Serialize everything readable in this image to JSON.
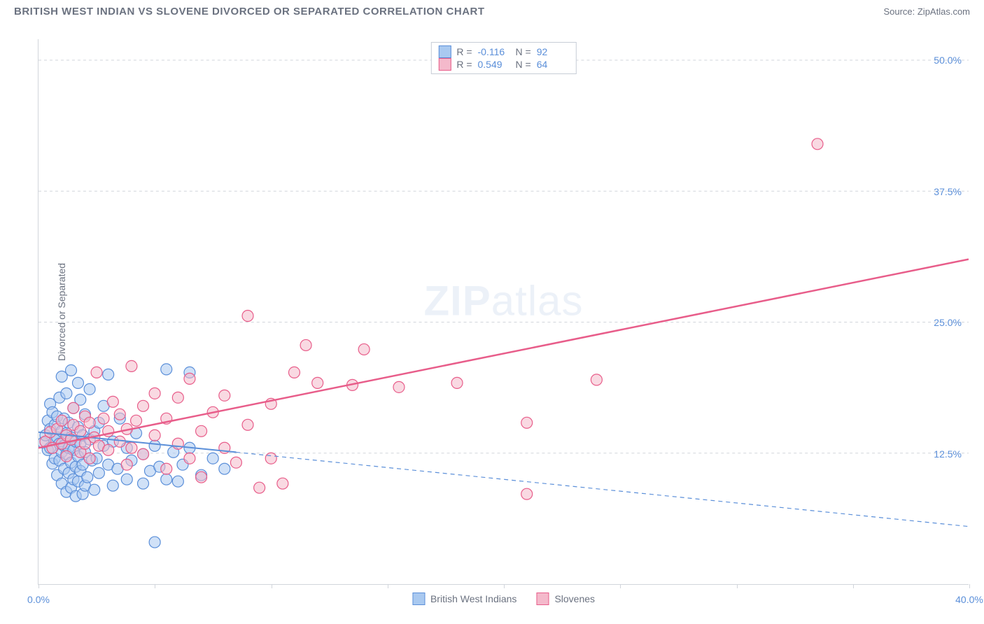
{
  "title": "BRITISH WEST INDIAN VS SLOVENE DIVORCED OR SEPARATED CORRELATION CHART",
  "source": "Source: ZipAtlas.com",
  "watermark_bold": "ZIP",
  "watermark_light": "atlas",
  "ylabel": "Divorced or Separated",
  "chart": {
    "type": "scatter",
    "xlim": [
      0,
      40
    ],
    "ylim": [
      0,
      52
    ],
    "xticks": [
      0,
      5,
      10,
      15,
      20,
      25,
      30,
      35,
      40
    ],
    "xtick_labels": {
      "0": "0.0%",
      "40": "40.0%"
    },
    "yticks": [
      12.5,
      25.0,
      37.5,
      50.0
    ],
    "ytick_labels": [
      "12.5%",
      "25.0%",
      "37.5%",
      "50.0%"
    ],
    "background_color": "#ffffff",
    "grid_color": "#d1d5db",
    "axis_color": "#d1d5db",
    "text_color": "#6b7280",
    "value_color": "#5b8fd9",
    "marker_radius": 8,
    "marker_opacity": 0.55,
    "series": [
      {
        "name": "British West Indians",
        "fill": "#a9c9f0",
        "stroke": "#5b8fd9",
        "R": "-0.116",
        "N": "92",
        "trend": {
          "x1": 0,
          "y1": 14.5,
          "x2": 40,
          "y2": 5.5,
          "dashed": true,
          "x_solid_end": 8.5,
          "width": 2
        },
        "points": [
          [
            0.2,
            13.5
          ],
          [
            0.3,
            14.2
          ],
          [
            0.4,
            12.8
          ],
          [
            0.4,
            15.6
          ],
          [
            0.5,
            13.0
          ],
          [
            0.5,
            14.8
          ],
          [
            0.5,
            17.2
          ],
          [
            0.6,
            11.5
          ],
          [
            0.6,
            16.4
          ],
          [
            0.7,
            12.0
          ],
          [
            0.7,
            13.8
          ],
          [
            0.7,
            15.2
          ],
          [
            0.8,
            10.4
          ],
          [
            0.8,
            14.0
          ],
          [
            0.8,
            16.0
          ],
          [
            0.9,
            11.8
          ],
          [
            0.9,
            13.4
          ],
          [
            0.9,
            17.8
          ],
          [
            1.0,
            9.6
          ],
          [
            1.0,
            12.6
          ],
          [
            1.0,
            14.6
          ],
          [
            1.0,
            19.8
          ],
          [
            1.1,
            11.0
          ],
          [
            1.1,
            13.2
          ],
          [
            1.1,
            15.8
          ],
          [
            1.2,
            8.8
          ],
          [
            1.2,
            12.4
          ],
          [
            1.2,
            14.4
          ],
          [
            1.2,
            18.2
          ],
          [
            1.3,
            10.6
          ],
          [
            1.3,
            13.0
          ],
          [
            1.3,
            15.4
          ],
          [
            1.4,
            9.2
          ],
          [
            1.4,
            11.6
          ],
          [
            1.4,
            14.0
          ],
          [
            1.4,
            20.4
          ],
          [
            1.5,
            10.0
          ],
          [
            1.5,
            12.8
          ],
          [
            1.5,
            16.8
          ],
          [
            1.6,
            8.4
          ],
          [
            1.6,
            11.2
          ],
          [
            1.6,
            13.6
          ],
          [
            1.7,
            9.8
          ],
          [
            1.7,
            12.2
          ],
          [
            1.7,
            15.0
          ],
          [
            1.7,
            19.2
          ],
          [
            1.8,
            10.8
          ],
          [
            1.8,
            13.4
          ],
          [
            1.8,
            17.6
          ],
          [
            1.9,
            8.6
          ],
          [
            1.9,
            11.4
          ],
          [
            1.9,
            14.2
          ],
          [
            2.0,
            9.4
          ],
          [
            2.0,
            12.6
          ],
          [
            2.0,
            16.2
          ],
          [
            2.1,
            10.2
          ],
          [
            2.2,
            13.8
          ],
          [
            2.2,
            18.6
          ],
          [
            2.3,
            11.8
          ],
          [
            2.4,
            9.0
          ],
          [
            2.4,
            14.6
          ],
          [
            2.5,
            12.0
          ],
          [
            2.6,
            10.6
          ],
          [
            2.6,
            15.4
          ],
          [
            2.8,
            13.2
          ],
          [
            2.8,
            17.0
          ],
          [
            3.0,
            11.4
          ],
          [
            3.0,
            20.0
          ],
          [
            3.2,
            9.4
          ],
          [
            3.2,
            13.6
          ],
          [
            3.4,
            11.0
          ],
          [
            3.5,
            15.8
          ],
          [
            3.8,
            10.0
          ],
          [
            3.8,
            13.0
          ],
          [
            4.0,
            11.8
          ],
          [
            4.2,
            14.4
          ],
          [
            4.5,
            9.6
          ],
          [
            4.5,
            12.4
          ],
          [
            4.8,
            10.8
          ],
          [
            5.0,
            13.2
          ],
          [
            5.2,
            11.2
          ],
          [
            5.5,
            10.0
          ],
          [
            5.5,
            20.5
          ],
          [
            5.8,
            12.6
          ],
          [
            6.0,
            9.8
          ],
          [
            6.2,
            11.4
          ],
          [
            6.5,
            13.0
          ],
          [
            6.5,
            20.2
          ],
          [
            7.0,
            10.4
          ],
          [
            7.5,
            12.0
          ],
          [
            5.0,
            4.0
          ],
          [
            8.0,
            11.0
          ]
        ]
      },
      {
        "name": "Slovenes",
        "fill": "#f4b9cb",
        "stroke": "#e85d8a",
        "R": "0.549",
        "N": "64",
        "trend": {
          "x1": 0,
          "y1": 13.0,
          "x2": 40,
          "y2": 31.0,
          "dashed": false,
          "x_solid_end": 40,
          "width": 2.5
        },
        "points": [
          [
            0.3,
            13.6
          ],
          [
            0.5,
            14.5
          ],
          [
            0.6,
            13.0
          ],
          [
            0.8,
            14.8
          ],
          [
            1.0,
            13.4
          ],
          [
            1.0,
            15.6
          ],
          [
            1.2,
            12.2
          ],
          [
            1.2,
            14.2
          ],
          [
            1.4,
            13.8
          ],
          [
            1.5,
            15.2
          ],
          [
            1.5,
            16.8
          ],
          [
            1.8,
            12.6
          ],
          [
            1.8,
            14.6
          ],
          [
            2.0,
            13.4
          ],
          [
            2.0,
            16.0
          ],
          [
            2.2,
            12.0
          ],
          [
            2.2,
            15.4
          ],
          [
            2.4,
            14.0
          ],
          [
            2.5,
            20.2
          ],
          [
            2.6,
            13.2
          ],
          [
            2.8,
            15.8
          ],
          [
            3.0,
            12.8
          ],
          [
            3.0,
            14.6
          ],
          [
            3.2,
            17.4
          ],
          [
            3.5,
            13.6
          ],
          [
            3.5,
            16.2
          ],
          [
            3.8,
            11.4
          ],
          [
            3.8,
            14.8
          ],
          [
            4.0,
            13.0
          ],
          [
            4.0,
            20.8
          ],
          [
            4.2,
            15.6
          ],
          [
            4.5,
            12.4
          ],
          [
            4.5,
            17.0
          ],
          [
            5.0,
            14.2
          ],
          [
            5.0,
            18.2
          ],
          [
            5.5,
            11.0
          ],
          [
            5.5,
            15.8
          ],
          [
            6.0,
            13.4
          ],
          [
            6.0,
            17.8
          ],
          [
            6.5,
            12.0
          ],
          [
            6.5,
            19.6
          ],
          [
            7.0,
            14.6
          ],
          [
            7.0,
            10.2
          ],
          [
            7.5,
            16.4
          ],
          [
            8.0,
            13.0
          ],
          [
            8.0,
            18.0
          ],
          [
            8.5,
            11.6
          ],
          [
            9.0,
            15.2
          ],
          [
            9.0,
            25.6
          ],
          [
            9.5,
            9.2
          ],
          [
            10.0,
            17.2
          ],
          [
            10.0,
            12.0
          ],
          [
            10.5,
            9.6
          ],
          [
            11.0,
            20.2
          ],
          [
            11.5,
            22.8
          ],
          [
            12.0,
            19.2
          ],
          [
            13.5,
            19.0
          ],
          [
            14.0,
            22.4
          ],
          [
            15.5,
            18.8
          ],
          [
            18.0,
            19.2
          ],
          [
            21.0,
            15.4
          ],
          [
            21.0,
            8.6
          ],
          [
            33.5,
            42.0
          ],
          [
            24.0,
            19.5
          ]
        ]
      }
    ]
  },
  "legend": [
    {
      "label": "British West Indians",
      "fill": "#a9c9f0",
      "stroke": "#5b8fd9"
    },
    {
      "label": "Slovenes",
      "fill": "#f4b9cb",
      "stroke": "#e85d8a"
    }
  ]
}
